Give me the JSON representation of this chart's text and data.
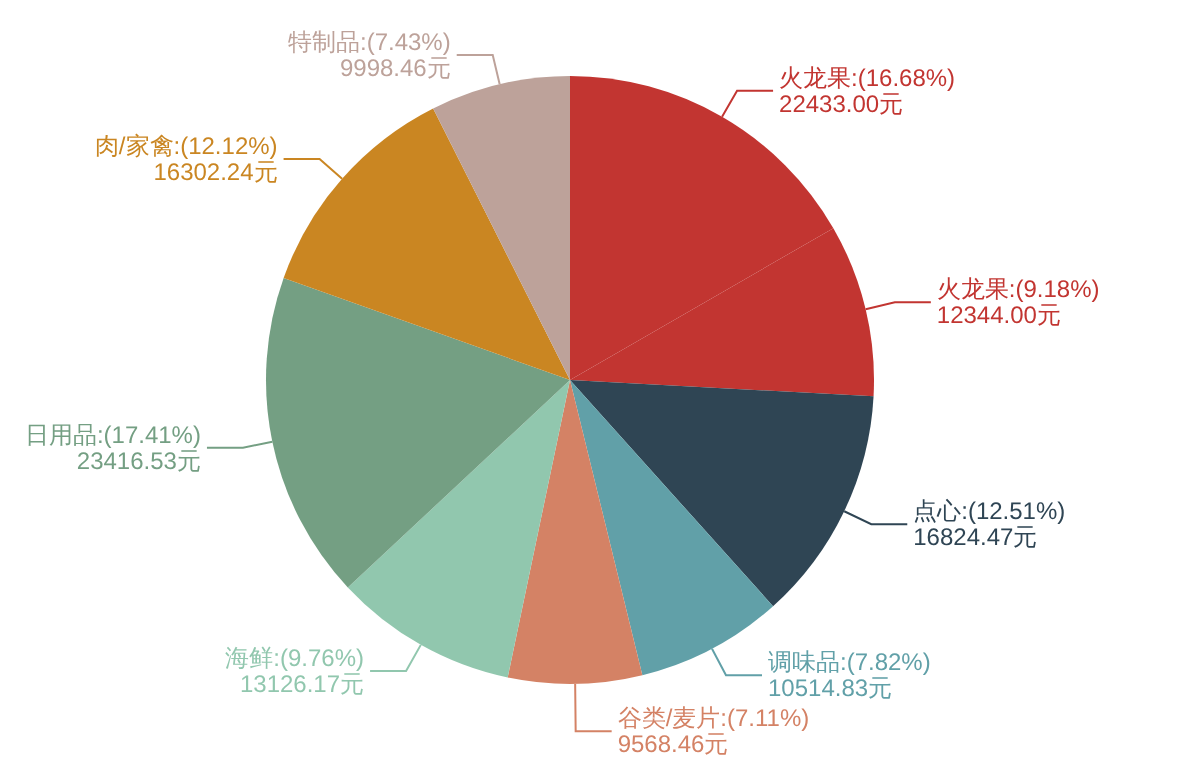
{
  "chart_data": {
    "type": "pie",
    "categories": [
      "火龙果",
      "火龙果",
      "点心",
      "调味品",
      "谷类/麦片",
      "海鲜",
      "日用品",
      "肉/家禽",
      "特制品"
    ],
    "values": [
      22433.0,
      12344.0,
      16824.47,
      10514.83,
      9568.46,
      13126.17,
      23416.53,
      16302.24,
      9998.46
    ],
    "value_labels": [
      "(16.68%)\n22433.00元",
      "(9.18%)\n12344.00元",
      "(12.51%)\n16824.47元",
      "(7.82%)\n10514.83元",
      "(7.11%)\n9568.46元",
      "(9.76%)\n13126.17元",
      "(17.41%)\n23416.53元",
      "(12.12%)\n16302.24元",
      "(7.43%)\n9998.46元"
    ],
    "colors": [
      "#c23531",
      "#c23531",
      "#2f4554",
      "#61a0a8",
      "#d48265",
      "#91c7ae",
      "#749f83",
      "#ca8622",
      "#bda29a"
    ]
  }
}
